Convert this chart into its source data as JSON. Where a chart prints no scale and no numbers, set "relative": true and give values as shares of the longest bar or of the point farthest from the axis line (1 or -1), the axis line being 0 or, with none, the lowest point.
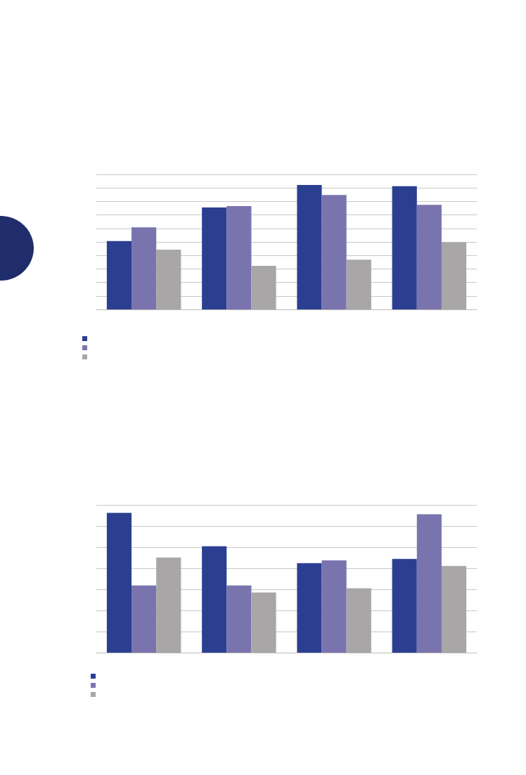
{
  "chart_data": [
    {
      "type": "bar",
      "relative": true,
      "categories": [
        null,
        null,
        null,
        null
      ],
      "grid": "y",
      "series": [
        {
          "color": "#2b3f91",
          "values": [
            0.55,
            0.82,
            1,
            0.99
          ]
        },
        {
          "color": "#7a74ae",
          "values": [
            0.66,
            0.83,
            0.92,
            0.84
          ]
        },
        {
          "color": "#a8a6a7",
          "values": [
            0.48,
            0.35,
            0.4,
            0.54
          ]
        }
      ]
    },
    {
      "type": "bar",
      "relative": true,
      "categories": [
        null,
        null,
        null,
        null
      ],
      "grid": "y",
      "series": [
        {
          "color": "#2b3f91",
          "values": [
            1,
            0.76,
            0.64,
            0.67
          ]
        },
        {
          "color": "#7a74ae",
          "values": [
            0.48,
            0.48,
            0.66,
            0.99
          ]
        },
        {
          "color": "#a8a6a7",
          "values": [
            0.68,
            0.43,
            0.46,
            0.62
          ]
        }
      ]
    }
  ]
}
